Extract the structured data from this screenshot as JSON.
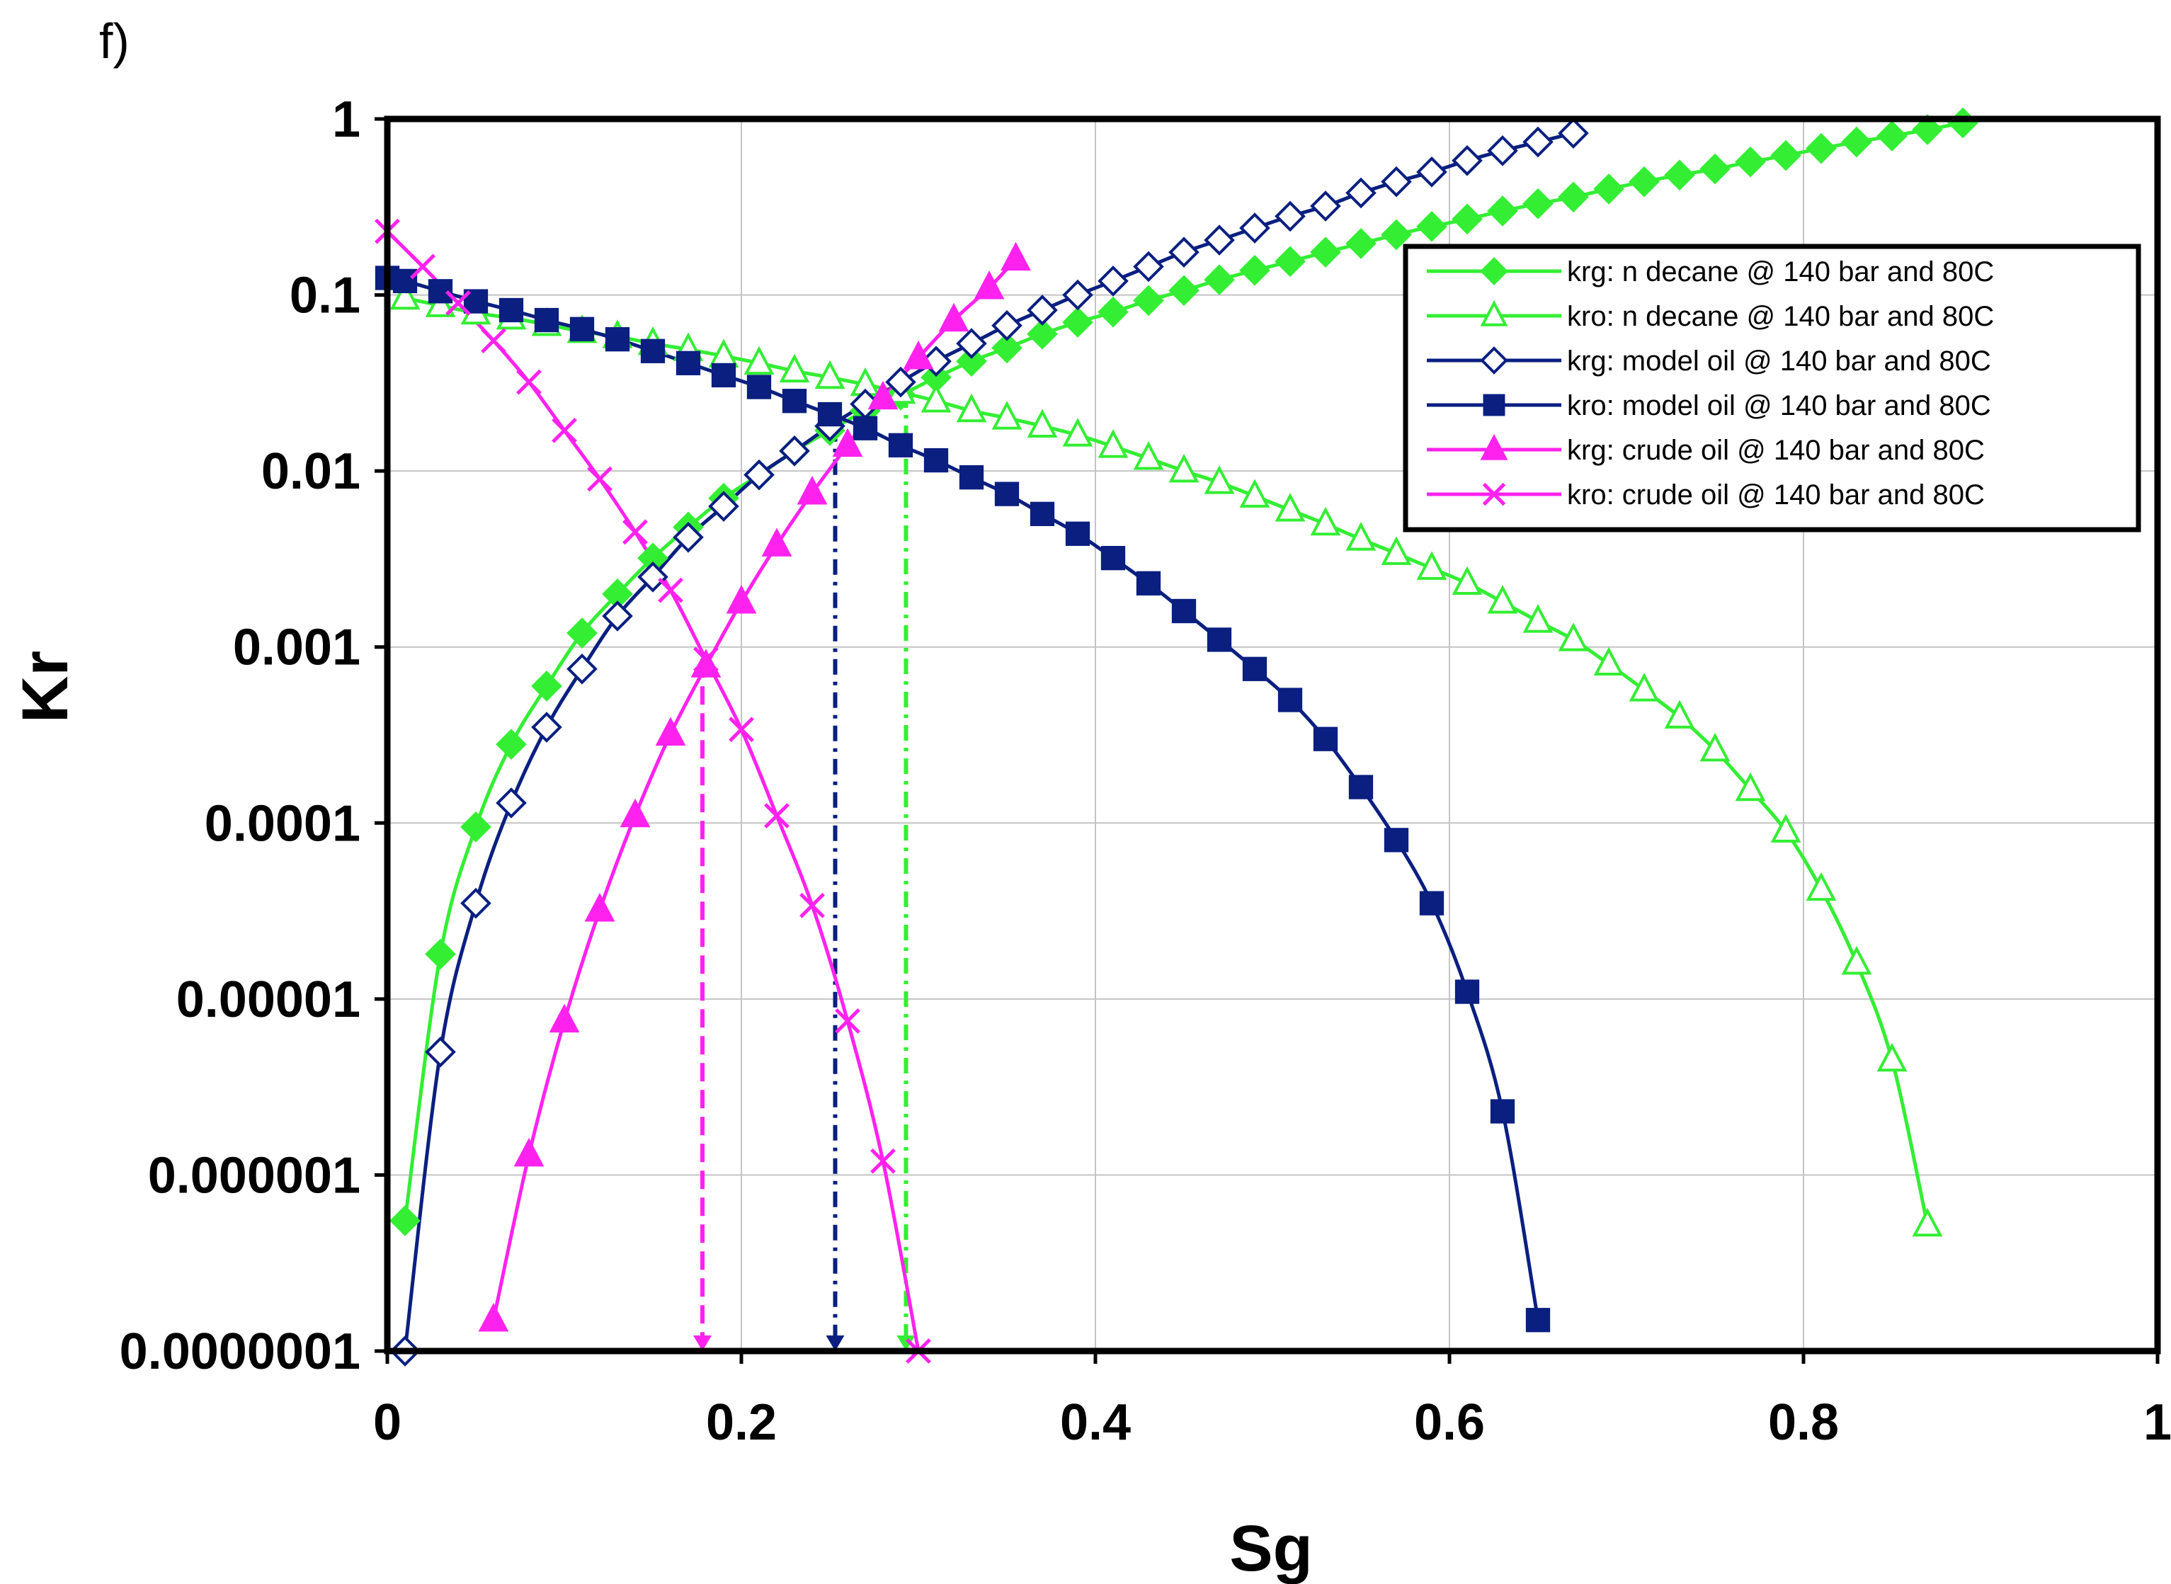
{
  "chart_data": {
    "type": "line",
    "panel_label": "f)",
    "title": "",
    "xlabel": "Sg",
    "ylabel": "Kr",
    "xlim": [
      0,
      1
    ],
    "ylim": [
      1e-07,
      1
    ],
    "yscale": "log",
    "grid": true,
    "legend_position": "top-right",
    "x_ticks": [
      {
        "value": 0,
        "label": "0"
      },
      {
        "value": 0.2,
        "label": "0.2"
      },
      {
        "value": 0.4,
        "label": "0.4"
      },
      {
        "value": 0.6,
        "label": "0.6"
      },
      {
        "value": 0.8,
        "label": "0.8"
      },
      {
        "value": 1,
        "label": "1"
      }
    ],
    "y_ticks": [
      {
        "value": 1,
        "label": "1"
      },
      {
        "value": 0.1,
        "label": "0.1"
      },
      {
        "value": 0.01,
        "label": "0.01"
      },
      {
        "value": 0.001,
        "label": "0.001"
      },
      {
        "value": 0.0001,
        "label": "0.0001"
      },
      {
        "value": 1e-05,
        "label": "0.00001"
      },
      {
        "value": 1e-06,
        "label": "0.000001"
      },
      {
        "value": 1e-07,
        "label": "0.0000001"
      }
    ],
    "series": [
      {
        "name": "krg: n decane @ 140 bar and  80C",
        "color": "#33ee33",
        "marker": "diamond-filled",
        "x": [
          0.01,
          0.03,
          0.05,
          0.07,
          0.09,
          0.11,
          0.13,
          0.15,
          0.17,
          0.19,
          0.21,
          0.23,
          0.25,
          0.27,
          0.29,
          0.31,
          0.33,
          0.35,
          0.37,
          0.39,
          0.41,
          0.43,
          0.45,
          0.47,
          0.49,
          0.51,
          0.53,
          0.55,
          0.57,
          0.59,
          0.61,
          0.63,
          0.65,
          0.67,
          0.69,
          0.71,
          0.73,
          0.75,
          0.77,
          0.79,
          0.81,
          0.83,
          0.85,
          0.87,
          0.89
        ],
        "y": [
          5.5e-07,
          1.8e-05,
          9.5e-05,
          0.00028,
          0.0006,
          0.0012,
          0.002,
          0.0032,
          0.0048,
          0.007,
          0.0095,
          0.013,
          0.017,
          0.022,
          0.027,
          0.034,
          0.042,
          0.05,
          0.06,
          0.07,
          0.08,
          0.093,
          0.106,
          0.122,
          0.138,
          0.155,
          0.175,
          0.196,
          0.22,
          0.245,
          0.27,
          0.3,
          0.33,
          0.36,
          0.4,
          0.44,
          0.48,
          0.52,
          0.57,
          0.62,
          0.68,
          0.74,
          0.8,
          0.87,
          0.95
        ]
      },
      {
        "name": "kro: n decane  @ 140 bar and  80C",
        "color": "#33ee33",
        "marker": "triangle-open",
        "x": [
          0.01,
          0.03,
          0.05,
          0.07,
          0.09,
          0.11,
          0.13,
          0.15,
          0.17,
          0.19,
          0.21,
          0.23,
          0.25,
          0.27,
          0.29,
          0.31,
          0.33,
          0.35,
          0.37,
          0.39,
          0.41,
          0.43,
          0.45,
          0.47,
          0.49,
          0.51,
          0.53,
          0.55,
          0.57,
          0.59,
          0.61,
          0.63,
          0.65,
          0.67,
          0.69,
          0.71,
          0.73,
          0.75,
          0.77,
          0.79,
          0.81,
          0.83,
          0.85,
          0.87
        ],
        "y": [
          0.096,
          0.087,
          0.079,
          0.074,
          0.068,
          0.062,
          0.058,
          0.053,
          0.049,
          0.045,
          0.041,
          0.037,
          0.034,
          0.031,
          0.028,
          0.025,
          0.022,
          0.02,
          0.018,
          0.016,
          0.0138,
          0.0118,
          0.01,
          0.0086,
          0.0072,
          0.006,
          0.005,
          0.0041,
          0.0034,
          0.0028,
          0.0023,
          0.0018,
          0.0014,
          0.0011,
          0.0008,
          0.00057,
          0.0004,
          0.00026,
          0.000155,
          9e-05,
          4.2e-05,
          1.6e-05,
          4.5e-06,
          5.2e-07
        ]
      },
      {
        "name": "krg: model oil @ 140 bar and  80C",
        "color": "#0a1f80",
        "marker": "diamond-open",
        "x": [
          0.01,
          0.03,
          0.05,
          0.07,
          0.09,
          0.11,
          0.13,
          0.15,
          0.17,
          0.19,
          0.21,
          0.23,
          0.25,
          0.27,
          0.29,
          0.31,
          0.33,
          0.35,
          0.37,
          0.39,
          0.41,
          0.43,
          0.45,
          0.47,
          0.49,
          0.51,
          0.53,
          0.55,
          0.57,
          0.59,
          0.61,
          0.63,
          0.65,
          0.67
        ],
        "y": [
          1e-07,
          5e-06,
          3.5e-05,
          0.00013,
          0.00035,
          0.00075,
          0.0015,
          0.0025,
          0.0042,
          0.0063,
          0.0095,
          0.013,
          0.018,
          0.024,
          0.032,
          0.042,
          0.053,
          0.067,
          0.082,
          0.1,
          0.12,
          0.145,
          0.175,
          0.205,
          0.24,
          0.28,
          0.32,
          0.38,
          0.44,
          0.5,
          0.58,
          0.66,
          0.74,
          0.83
        ]
      },
      {
        "name": "kro: model oil  @  140 bar and 80C",
        "color": "#0a1f80",
        "marker": "square-filled",
        "x": [
          0,
          0.01,
          0.03,
          0.05,
          0.07,
          0.09,
          0.11,
          0.13,
          0.15,
          0.17,
          0.19,
          0.21,
          0.23,
          0.25,
          0.27,
          0.29,
          0.31,
          0.33,
          0.35,
          0.37,
          0.39,
          0.41,
          0.43,
          0.45,
          0.47,
          0.49,
          0.51,
          0.53,
          0.55,
          0.57,
          0.59,
          0.61,
          0.63,
          0.65
        ],
        "y": [
          0.125,
          0.12,
          0.105,
          0.092,
          0.082,
          0.072,
          0.064,
          0.056,
          0.048,
          0.041,
          0.035,
          0.03,
          0.025,
          0.021,
          0.0175,
          0.014,
          0.0115,
          0.0092,
          0.0074,
          0.0057,
          0.0044,
          0.0032,
          0.0023,
          0.0016,
          0.0011,
          0.00075,
          0.0005,
          0.0003,
          0.00016,
          8e-05,
          3.5e-05,
          1.1e-05,
          2.3e-06,
          1.5e-07
        ]
      },
      {
        "name": "krg: crude oil @ 140 bar and  80C",
        "color": "#ff22ee",
        "marker": "triangle-filled",
        "x": [
          0.06,
          0.08,
          0.1,
          0.12,
          0.14,
          0.16,
          0.18,
          0.2,
          0.22,
          0.24,
          0.26,
          0.28,
          0.3,
          0.32,
          0.34,
          0.355
        ],
        "y": [
          1.5e-07,
          1.3e-06,
          7.5e-06,
          3.2e-05,
          0.00011,
          0.00032,
          0.00078,
          0.0018,
          0.0038,
          0.0075,
          0.014,
          0.026,
          0.044,
          0.072,
          0.11,
          0.16
        ]
      },
      {
        "name": "kro: crude oil @  140 bar and 80C",
        "color": "#ff22ee",
        "marker": "x",
        "x": [
          0,
          0.02,
          0.04,
          0.06,
          0.08,
          0.1,
          0.12,
          0.14,
          0.16,
          0.18,
          0.2,
          0.22,
          0.24,
          0.26,
          0.28,
          0.3
        ],
        "y": [
          0.23,
          0.145,
          0.09,
          0.055,
          0.032,
          0.017,
          0.009,
          0.0045,
          0.0021,
          0.00085,
          0.00034,
          0.00011,
          3.4e-05,
          7.5e-06,
          1.2e-06,
          1e-07
        ]
      }
    ],
    "annotations": [
      {
        "name": "crude oil",
        "x": 0.178,
        "y_top": 0.00085,
        "color": "#ff22ee",
        "style": "dashed"
      },
      {
        "name": "model oil",
        "x": 0.253,
        "y_top": 0.018,
        "color": "#0a1f80",
        "style": "dash-dot"
      },
      {
        "name": "n decane",
        "x": 0.293,
        "y_top": 0.028,
        "color": "#33ee33",
        "style": "dash-dot"
      }
    ]
  }
}
